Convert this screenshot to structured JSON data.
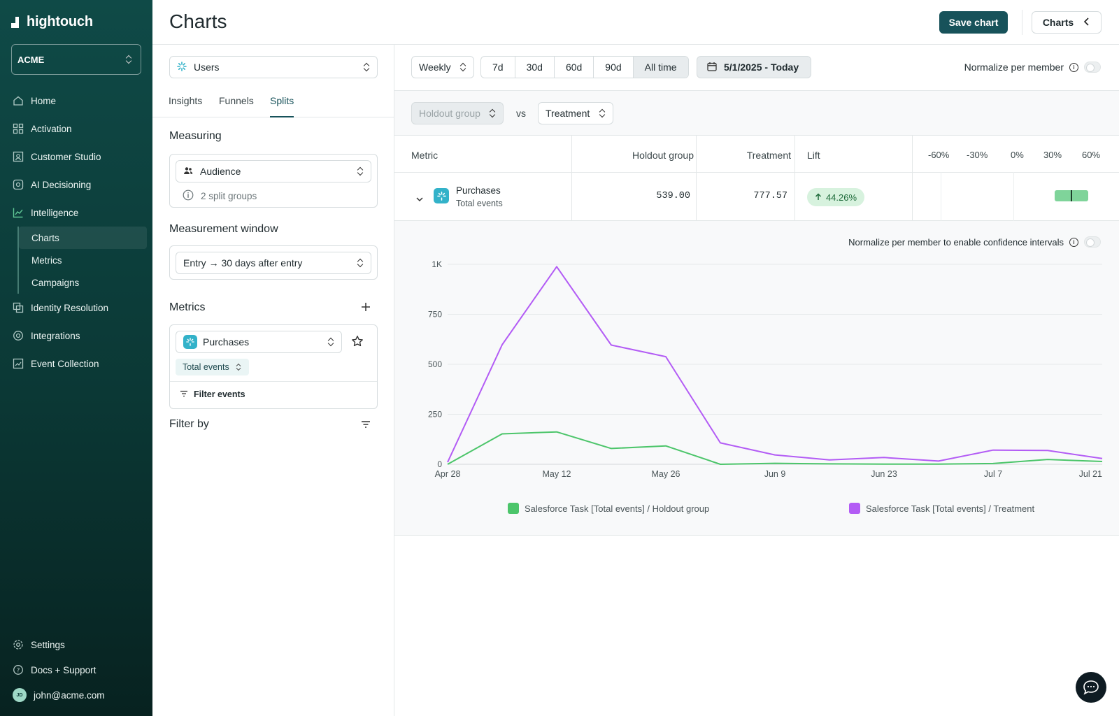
{
  "app": {
    "logo_text": "hightouch",
    "workspace": "ACME"
  },
  "sidebar": {
    "items": [
      {
        "label": "Home"
      },
      {
        "label": "Activation"
      },
      {
        "label": "Customer Studio"
      },
      {
        "label": "AI Decisioning"
      },
      {
        "label": "Intelligence"
      }
    ],
    "subitems": [
      {
        "label": "Charts"
      },
      {
        "label": "Metrics"
      },
      {
        "label": "Campaigns"
      }
    ],
    "items_after": [
      {
        "label": "Identity Resolution"
      },
      {
        "label": "Integrations"
      },
      {
        "label": "Event Collection"
      }
    ],
    "settings": "Settings",
    "docs": "Docs + Support",
    "user_email": "john@acme.com",
    "user_initials": "JD"
  },
  "header": {
    "title": "Charts",
    "save_label": "Save chart",
    "charts_label": "Charts"
  },
  "config": {
    "model_select": "Users",
    "tabs": [
      "Insights",
      "Funnels",
      "Splits"
    ],
    "measuring_title": "Measuring",
    "audience_select": "Audience",
    "split_groups": "2 split groups",
    "window_title": "Measurement window",
    "window_select": "Entry → 30 days after entry",
    "metrics_title": "Metrics",
    "metric_select": "Purchases",
    "metric_agg": "Total events",
    "filter_events": "Filter events",
    "filter_by_title": "Filter by"
  },
  "controls": {
    "granularity": "Weekly",
    "ranges": [
      "7d",
      "30d",
      "60d",
      "90d",
      "All time"
    ],
    "active_range": "All time",
    "date_range": "5/1/2025 - Today",
    "normalize_label": "Normalize per member"
  },
  "compare": {
    "group_a": "Holdout group",
    "vs": "vs",
    "group_b": "Treatment"
  },
  "table": {
    "headers": {
      "metric": "Metric",
      "holdout": "Holdout group",
      "treatment": "Treatment",
      "lift": "Lift"
    },
    "ticks": [
      "-60%",
      "-30%",
      "0%",
      "30%",
      "60%"
    ],
    "row": {
      "metric_name": "Purchases",
      "metric_sub": "Total events",
      "holdout": "539.00",
      "treatment": "777.57",
      "lift": "44.26%",
      "ci_low_pct": 29,
      "ci_high_pct": 59,
      "ci_point_pct": 44.26
    }
  },
  "chart_normalize_label": "Normalize per member to enable confidence intervals",
  "colors": {
    "holdout": "#4cc56a",
    "treatment": "#b35cf5",
    "accent": "#17525a"
  },
  "chart_data": {
    "type": "line",
    "x": [
      "Apr 28",
      "May 5",
      "May 12",
      "May 19",
      "May 26",
      "Jun 2",
      "Jun 9",
      "Jun 16",
      "Jun 23",
      "Jun 30",
      "Jul 7",
      "Jul 14",
      "Jul 21"
    ],
    "x_tick_labels": [
      "Apr 28",
      "May 12",
      "May 26",
      "Jun 9",
      "Jun 23",
      "Jul 7",
      "Jul 21"
    ],
    "y_tick_labels": [
      "0",
      "250",
      "500",
      "750",
      "1K"
    ],
    "ylim": [
      0,
      1000
    ],
    "series": [
      {
        "name": "Salesforce Task [Total events] / Holdout group",
        "values": [
          0,
          152,
          162,
          79,
          92,
          0,
          5,
          2,
          1,
          1,
          4,
          24,
          14
        ]
      },
      {
        "name": "Salesforce Task [Total events] / Treatment",
        "values": [
          10,
          598,
          988,
          596,
          538,
          107,
          47,
          22,
          34,
          16,
          71,
          69,
          29
        ]
      }
    ],
    "grid": true,
    "legend": "bottom"
  }
}
